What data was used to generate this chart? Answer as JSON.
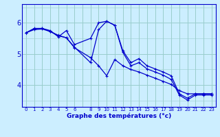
{
  "xlabel": "Graphe des températures (°c)",
  "bg_color": "#cceeff",
  "line_color": "#0000cc",
  "grid_color": "#99cccc",
  "xlim": [
    -0.5,
    23.5
  ],
  "ylim": [
    3.3,
    6.6
  ],
  "yticks": [
    4,
    5,
    6
  ],
  "xtick_labels": [
    "0",
    "1",
    "2",
    "3",
    "4",
    "5",
    "6",
    "",
    "8",
    "9",
    "10",
    "11",
    "12",
    "13",
    "14",
    "15",
    "16",
    "17",
    "18",
    "19",
    "20",
    "21",
    "22",
    "23"
  ],
  "xtick_positions": [
    0,
    1,
    2,
    3,
    4,
    5,
    6,
    7,
    8,
    9,
    10,
    11,
    12,
    13,
    14,
    15,
    16,
    17,
    18,
    19,
    20,
    21,
    22,
    23
  ],
  "series": [
    {
      "x": [
        0,
        1,
        2,
        3,
        4,
        5,
        6,
        8,
        9,
        10,
        11,
        12,
        13,
        14,
        15,
        16,
        17,
        18,
        19,
        20,
        21,
        22,
        23
      ],
      "y": [
        5.68,
        5.8,
        5.82,
        5.75,
        5.55,
        5.75,
        5.3,
        5.5,
        6.0,
        6.05,
        5.92,
        5.1,
        4.72,
        4.85,
        4.62,
        4.52,
        4.42,
        4.3,
        3.72,
        3.58,
        3.72,
        3.72,
        3.72
      ]
    },
    {
      "x": [
        0,
        1,
        2,
        3,
        4,
        5,
        6,
        8,
        9,
        10,
        11,
        12,
        13,
        14,
        15,
        16,
        17,
        18,
        19,
        20,
        21,
        22,
        23
      ],
      "y": [
        5.68,
        5.82,
        5.82,
        5.72,
        5.6,
        5.52,
        5.2,
        4.88,
        4.62,
        4.3,
        4.82,
        4.62,
        4.5,
        4.42,
        4.32,
        4.22,
        4.12,
        4.02,
        3.82,
        3.72,
        3.72,
        3.72,
        3.72
      ]
    },
    {
      "x": [
        0,
        1,
        2,
        3,
        4,
        5,
        6,
        8,
        9,
        10,
        11,
        12,
        13,
        14,
        15,
        16,
        17,
        18,
        19,
        20,
        21,
        22,
        23
      ],
      "y": [
        5.68,
        5.78,
        5.8,
        5.72,
        5.58,
        5.52,
        5.22,
        4.72,
        5.78,
        6.05,
        5.92,
        5.05,
        4.62,
        4.72,
        4.52,
        4.42,
        4.32,
        4.18,
        3.68,
        3.52,
        3.68,
        3.68,
        3.68
      ]
    }
  ]
}
